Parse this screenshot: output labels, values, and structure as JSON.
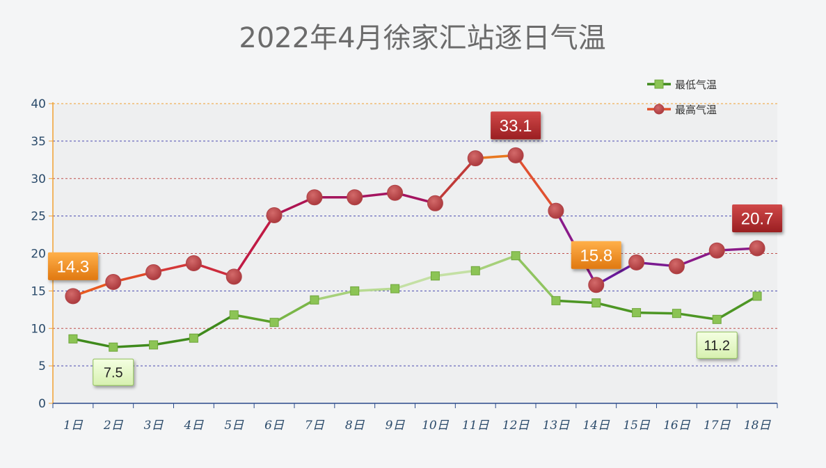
{
  "chart_data": {
    "type": "line",
    "title": "2022年4月徐家汇站逐日气温",
    "categories": [
      "1日",
      "2日",
      "3日",
      "4日",
      "5日",
      "6日",
      "7日",
      "8日",
      "9日",
      "10日",
      "11日",
      "12日",
      "13日",
      "14日",
      "15日",
      "16日",
      "17日",
      "18日"
    ],
    "ylim": [
      0,
      40
    ],
    "yticks": [
      0,
      5,
      10,
      15,
      20,
      25,
      30,
      35,
      40
    ],
    "grid": true,
    "legend_position": "top-right",
    "series": [
      {
        "name": "最低气温",
        "color": "#7ab648",
        "marker": "square",
        "values": [
          8.6,
          7.5,
          7.8,
          8.7,
          11.8,
          10.8,
          13.8,
          15.0,
          15.3,
          17.0,
          17.7,
          19.7,
          13.7,
          13.4,
          12.1,
          12.0,
          11.2,
          14.3
        ]
      },
      {
        "name": "最高气温",
        "color": "#c0504d",
        "marker": "circle",
        "values": [
          14.3,
          16.2,
          17.5,
          18.7,
          16.9,
          25.1,
          27.5,
          27.5,
          28.1,
          26.7,
          32.7,
          33.1,
          25.7,
          15.8,
          18.8,
          18.3,
          20.4,
          20.7
        ]
      }
    ],
    "annotations": [
      {
        "series": 1,
        "index": 0,
        "text": "14.3",
        "style": "orange"
      },
      {
        "series": 1,
        "index": 11,
        "text": "33.1",
        "style": "red"
      },
      {
        "series": 1,
        "index": 13,
        "text": "15.8",
        "style": "orange"
      },
      {
        "series": 1,
        "index": 17,
        "text": "20.7",
        "style": "red"
      },
      {
        "series": 0,
        "index": 1,
        "text": "7.5",
        "style": "green"
      },
      {
        "series": 0,
        "index": 16,
        "text": "11.2",
        "style": "green"
      }
    ]
  }
}
